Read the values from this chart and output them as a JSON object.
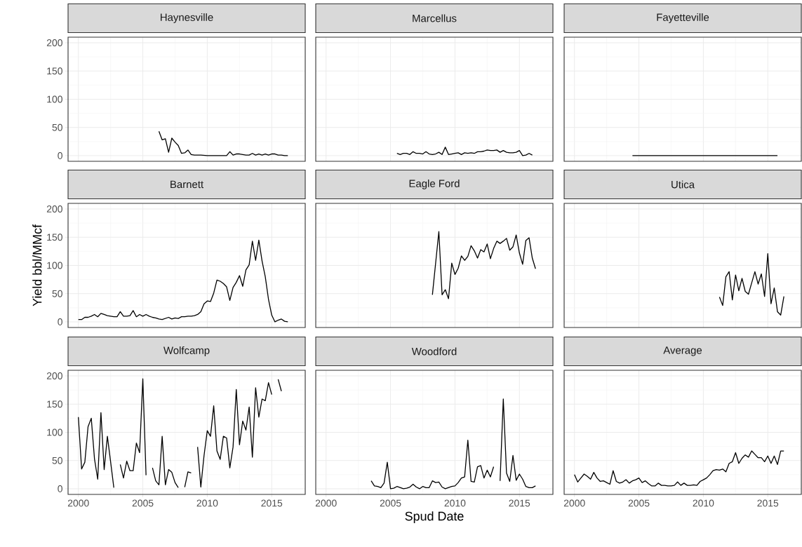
{
  "chart_data": [
    {
      "type": "line",
      "title": "Haynesville",
      "color": "#000000",
      "grid": true,
      "tick_labels": "y",
      "xlim": [
        1999.2,
        2017.6
      ],
      "ylim": [
        -10,
        210
      ],
      "xticks": [
        2000,
        2005,
        2010,
        2015
      ],
      "yticks": [
        0,
        50,
        100,
        150,
        200
      ],
      "x": [
        2006.25,
        2006.5,
        2006.75,
        2007,
        2007.25,
        2007.5,
        2007.75,
        2008,
        2008.25,
        2008.5,
        2008.75,
        2009,
        2009.5,
        2010,
        2011,
        2011.5,
        2011.75,
        2012,
        2012.25,
        2012.5,
        2012.75,
        2013,
        2013.25,
        2013.5,
        2013.75,
        2014,
        2014.25,
        2014.5,
        2014.75,
        2015,
        2015.25,
        2015.5,
        2015.75,
        2016,
        2016.25
      ],
      "values": [
        43,
        28,
        30,
        6,
        31,
        24,
        18,
        4,
        5,
        10,
        2,
        1,
        1,
        0,
        0,
        0,
        7,
        1,
        3,
        3,
        2,
        1,
        1,
        4,
        1,
        3,
        1,
        3,
        1,
        3,
        3,
        1,
        1,
        0,
        0
      ]
    },
    {
      "type": "line",
      "title": "Marcellus",
      "color": "#000000",
      "grid": true,
      "tick_labels": false,
      "xlim": [
        1999.2,
        2017.6
      ],
      "ylim": [
        -10,
        210
      ],
      "xticks": [
        2000,
        2005,
        2010,
        2015
      ],
      "yticks": [
        0,
        50,
        100,
        150,
        200
      ],
      "x": [
        2005.5,
        2005.75,
        2006,
        2006.25,
        2006.5,
        2006.75,
        2007,
        2007.25,
        2007.5,
        2007.75,
        2008,
        2008.25,
        2008.5,
        2008.75,
        2009,
        2009.25,
        2009.5,
        2009.75,
        2010,
        2010.25,
        2010.5,
        2010.75,
        2011,
        2011.25,
        2011.5,
        2011.75,
        2012,
        2012.25,
        2012.5,
        2012.75,
        2013,
        2013.25,
        2013.5,
        2013.75,
        2014,
        2014.25,
        2014.5,
        2014.75,
        2015,
        2015.25,
        2015.5,
        2015.75,
        2016
      ],
      "values": [
        4,
        2,
        4,
        4,
        2,
        7,
        4,
        4,
        3,
        7,
        3,
        2,
        3,
        6,
        2,
        15,
        2,
        3,
        4,
        5,
        2,
        5,
        4,
        5,
        4,
        7,
        7,
        8,
        10,
        9,
        9,
        10,
        6,
        9,
        6,
        5,
        5,
        6,
        9,
        0,
        1,
        4,
        1
      ]
    },
    {
      "type": "line",
      "title": "Fayetteville",
      "color": "#000000",
      "grid": true,
      "tick_labels": false,
      "xlim": [
        1999.2,
        2017.6
      ],
      "ylim": [
        -10,
        210
      ],
      "xticks": [
        2000,
        2005,
        2010,
        2015
      ],
      "yticks": [
        0,
        50,
        100,
        150,
        200
      ],
      "x": [
        2004.5,
        2015.75
      ],
      "values": [
        0,
        0
      ]
    },
    {
      "type": "line",
      "title": "Barnett",
      "ylabel": "Yield  bbl/MMcf",
      "color": "#000000",
      "grid": true,
      "tick_labels": "y",
      "xlim": [
        1999.2,
        2017.6
      ],
      "ylim": [
        -10,
        210
      ],
      "xticks": [
        2000,
        2005,
        2010,
        2015
      ],
      "yticks": [
        0,
        50,
        100,
        150,
        200
      ],
      "x": [
        2000,
        2000.25,
        2000.5,
        2000.75,
        2001,
        2001.25,
        2001.5,
        2001.75,
        2002,
        2002.25,
        2002.5,
        2002.75,
        2003,
        2003.25,
        2003.5,
        2003.75,
        2004,
        2004.25,
        2004.5,
        2004.75,
        2005,
        2005.25,
        2005.5,
        2005.75,
        2006,
        2006.25,
        2006.5,
        2006.75,
        2007,
        2007.25,
        2007.5,
        2007.75,
        2008,
        2008.25,
        2008.5,
        2008.75,
        2009,
        2009.25,
        2009.5,
        2009.75,
        2010,
        2010.25,
        2010.5,
        2010.75,
        2011,
        2011.25,
        2011.5,
        2011.75,
        2012,
        2012.25,
        2012.5,
        2012.75,
        2013,
        2013.25,
        2013.5,
        2013.75,
        2014,
        2014.25,
        2014.5,
        2014.75,
        2015,
        2015.25,
        2015.5,
        2015.75,
        2016,
        2016.25
      ],
      "values": [
        4,
        4,
        8,
        8,
        10,
        13,
        9,
        15,
        13,
        11,
        10,
        9,
        9,
        18,
        10,
        10,
        11,
        20,
        9,
        13,
        10,
        13,
        10,
        8,
        7,
        5,
        4,
        6,
        8,
        5,
        7,
        6,
        9,
        9,
        10,
        10,
        11,
        13,
        18,
        32,
        37,
        36,
        51,
        74,
        72,
        68,
        62,
        38,
        61,
        70,
        82,
        63,
        92,
        101,
        143,
        109,
        145,
        108,
        80,
        40,
        12,
        0,
        3,
        5,
        1,
        0
      ]
    },
    {
      "type": "line",
      "title": "Eagle Ford",
      "color": "#000000",
      "grid": true,
      "tick_labels": false,
      "xlim": [
        1999.2,
        2017.6
      ],
      "ylim": [
        -10,
        210
      ],
      "xticks": [
        2000,
        2005,
        2010,
        2015
      ],
      "yticks": [
        0,
        50,
        100,
        150,
        200
      ],
      "x": [
        2008.25,
        2008.75,
        2009,
        2009.25,
        2009.5,
        2009.75,
        2010,
        2010.25,
        2010.5,
        2010.75,
        2011,
        2011.25,
        2011.5,
        2011.75,
        2012,
        2012.25,
        2012.5,
        2012.75,
        2013,
        2013.25,
        2013.5,
        2013.75,
        2014,
        2014.25,
        2014.5,
        2014.75,
        2015,
        2015.25,
        2015.5,
        2015.75,
        2016,
        2016.25
      ],
      "values": [
        48,
        160,
        48,
        57,
        41,
        104,
        84,
        95,
        117,
        109,
        116,
        135,
        126,
        113,
        128,
        124,
        138,
        112,
        130,
        143,
        139,
        143,
        148,
        127,
        133,
        154,
        122,
        102,
        144,
        149,
        113,
        94
      ]
    },
    {
      "type": "line",
      "title": "Utica",
      "color": "#000000",
      "grid": true,
      "tick_labels": false,
      "xlim": [
        1999.2,
        2017.6
      ],
      "ylim": [
        -10,
        210
      ],
      "xticks": [
        2000,
        2005,
        2010,
        2015
      ],
      "yticks": [
        0,
        50,
        100,
        150,
        200
      ],
      "x": [
        2011.25,
        2011.5,
        2011.75,
        2012,
        2012.25,
        2012.5,
        2012.75,
        2013,
        2013.25,
        2013.5,
        2013.75,
        2014,
        2014.25,
        2014.5,
        2014.75,
        2015,
        2015.25,
        2015.5,
        2015.75,
        2016,
        2016.25
      ],
      "values": [
        44,
        29,
        80,
        89,
        39,
        83,
        55,
        77,
        54,
        49,
        69,
        89,
        67,
        85,
        45,
        121,
        32,
        60,
        18,
        12,
        45
      ]
    },
    {
      "type": "line",
      "title": "Wolfcamp",
      "color": "#000000",
      "grid": true,
      "xlim": [
        1999.2,
        2017.6
      ],
      "ylim": [
        -10,
        210
      ],
      "xticks": [
        2000,
        2005,
        2010,
        2015
      ],
      "yticks": [
        0,
        50,
        100,
        150,
        200
      ],
      "x": [
        2000,
        2000.25,
        2000.5,
        2000.75,
        2001,
        2001.25,
        2001.5,
        2001.75,
        2002,
        2002.25,
        2002.5,
        2002.75,
        2003,
        2003.25,
        2003.5,
        2003.75,
        2004,
        2004.25,
        2004.5,
        2004.75,
        2005,
        2005.25,
        2005.5,
        2005.75,
        2006,
        2006.25,
        2006.5,
        2006.75,
        2007,
        2007.25,
        2007.5,
        2007.75,
        2008,
        2008.25,
        2008.5,
        2008.75,
        2009,
        2009.25,
        2009.5,
        2009.75,
        2010,
        2010.25,
        2010.5,
        2010.75,
        2011,
        2011.25,
        2011.5,
        2011.75,
        2012,
        2012.25,
        2012.5,
        2012.75,
        2013,
        2013.25,
        2013.5,
        2013.75,
        2014,
        2014.25,
        2014.5,
        2014.75,
        2015,
        2015.25,
        2015.5,
        2015.75
      ],
      "values": [
        127,
        35,
        47,
        110,
        125,
        53,
        17,
        135,
        34,
        93,
        48,
        2,
        null,
        43,
        19,
        49,
        32,
        32,
        81,
        64,
        195,
        24,
        null,
        37,
        14,
        7,
        93,
        7,
        34,
        29,
        11,
        2,
        null,
        3,
        30,
        28,
        null,
        74,
        3,
        59,
        103,
        93,
        147,
        67,
        52,
        93,
        90,
        37,
        74,
        176,
        78,
        120,
        104,
        145,
        56,
        179,
        127,
        159,
        156,
        188,
        167,
        null,
        194,
        173
      ]
    },
    {
      "type": "line",
      "title": "Woodford",
      "xlabel": "Spud Date",
      "color": "#000000",
      "grid": true,
      "tick_labels": "x",
      "xlim": [
        1999.2,
        2017.6
      ],
      "ylim": [
        -10,
        210
      ],
      "xticks": [
        2000,
        2005,
        2010,
        2015
      ],
      "yticks": [
        0,
        50,
        100,
        150,
        200
      ],
      "x": [
        2003.5,
        2003.75,
        2004,
        2004.25,
        2004.5,
        2004.75,
        2005,
        2005.25,
        2005.5,
        2005.75,
        2006,
        2006.25,
        2006.5,
        2006.75,
        2007,
        2007.25,
        2007.5,
        2007.75,
        2008,
        2008.25,
        2008.5,
        2008.75,
        2009,
        2009.25,
        2009.5,
        2009.75,
        2010,
        2010.25,
        2010.5,
        2010.75,
        2011,
        2011.25,
        2011.5,
        2011.75,
        2012,
        2012.25,
        2012.5,
        2012.75,
        2013,
        2013.25,
        2013.5,
        2013.75,
        2014,
        2014.25,
        2014.5,
        2014.75,
        2015,
        2015.25,
        2015.5,
        2015.75,
        2016,
        2016.25
      ],
      "values": [
        14,
        5,
        4,
        2,
        10,
        47,
        0,
        1,
        4,
        2,
        0,
        1,
        3,
        8,
        3,
        0,
        4,
        2,
        2,
        14,
        11,
        12,
        3,
        0,
        2,
        4,
        5,
        11,
        19,
        21,
        86,
        13,
        12,
        39,
        41,
        19,
        33,
        21,
        39,
        null,
        14,
        159,
        28,
        13,
        59,
        15,
        26,
        17,
        4,
        2,
        2,
        5
      ]
    },
    {
      "type": "line",
      "title": "Average",
      "color": "#000000",
      "grid": true,
      "tick_labels": "x",
      "xlim": [
        1999.2,
        2017.6
      ],
      "ylim": [
        -10,
        210
      ],
      "xticks": [
        2000,
        2005,
        2010,
        2015
      ],
      "yticks": [
        0,
        50,
        100,
        150,
        200
      ],
      "x": [
        2000,
        2000.25,
        2000.5,
        2000.75,
        2001,
        2001.25,
        2001.5,
        2001.75,
        2002,
        2002.25,
        2002.5,
        2002.75,
        2003,
        2003.25,
        2003.5,
        2003.75,
        2004,
        2004.25,
        2004.5,
        2004.75,
        2005,
        2005.25,
        2005.5,
        2005.75,
        2006,
        2006.25,
        2006.5,
        2006.75,
        2007,
        2007.25,
        2007.5,
        2007.75,
        2008,
        2008.25,
        2008.5,
        2008.75,
        2009,
        2009.25,
        2009.5,
        2009.75,
        2010,
        2010.25,
        2010.5,
        2010.75,
        2011,
        2011.25,
        2011.5,
        2011.75,
        2012,
        2012.25,
        2012.5,
        2012.75,
        2013,
        2013.25,
        2013.5,
        2013.75,
        2014,
        2014.25,
        2014.5,
        2014.75,
        2015,
        2015.25,
        2015.5,
        2015.75,
        2016,
        2016.25
      ],
      "values": [
        25,
        12,
        19,
        26,
        22,
        17,
        29,
        19,
        13,
        14,
        11,
        8,
        32,
        13,
        10,
        12,
        16,
        10,
        14,
        16,
        19,
        11,
        14,
        9,
        5,
        5,
        10,
        6,
        6,
        5,
        5,
        6,
        12,
        6,
        10,
        6,
        6,
        7,
        6,
        13,
        16,
        19,
        25,
        32,
        34,
        33,
        35,
        30,
        45,
        48,
        64,
        45,
        54,
        60,
        56,
        67,
        61,
        55,
        55,
        48,
        58,
        45,
        58,
        43,
        67,
        67
      ]
    }
  ]
}
